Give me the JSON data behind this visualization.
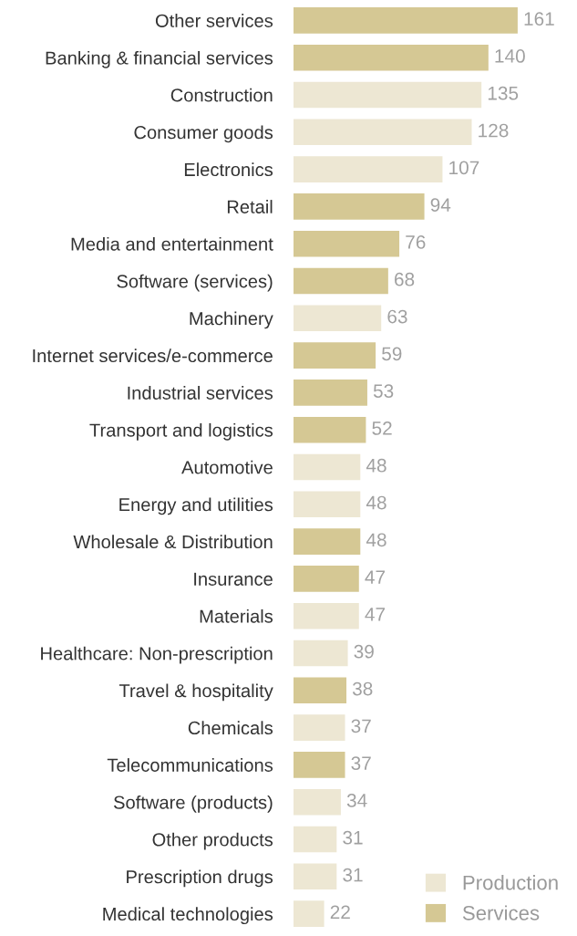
{
  "chart_data": {
    "type": "bar",
    "orientation": "horizontal",
    "data_labels": true,
    "legend": "bottom right",
    "grid": false,
    "categories": [
      "Other services",
      "Banking & financial services",
      "Construction",
      "Consumer goods",
      "Electronics",
      "Retail",
      "Media and entertainment",
      "Software (services)",
      "Machinery",
      "Internet services/e-commerce",
      "Industrial services",
      "Transport and logistics",
      "Automotive",
      "Energy and utilities",
      "Wholesale & Distribution",
      "Insurance",
      "Materials",
      "Healthcare: Non-prescription",
      "Travel & hospitality",
      "Chemicals",
      "Telecommunications",
      "Software (products)",
      "Other products",
      "Prescription drugs",
      "Medical technologies"
    ],
    "series": [
      {
        "name": "Production",
        "color": "#ede7d3",
        "values": [
          null,
          null,
          135,
          128,
          107,
          null,
          null,
          null,
          63,
          null,
          null,
          null,
          48,
          48,
          null,
          null,
          47,
          39,
          null,
          37,
          null,
          34,
          31,
          31,
          22
        ]
      },
      {
        "name": "Services",
        "color": "#d5c894",
        "values": [
          161,
          140,
          null,
          null,
          null,
          94,
          76,
          68,
          null,
          59,
          53,
          52,
          null,
          null,
          48,
          47,
          null,
          null,
          38,
          null,
          37,
          null,
          null,
          null,
          null
        ]
      }
    ]
  }
}
